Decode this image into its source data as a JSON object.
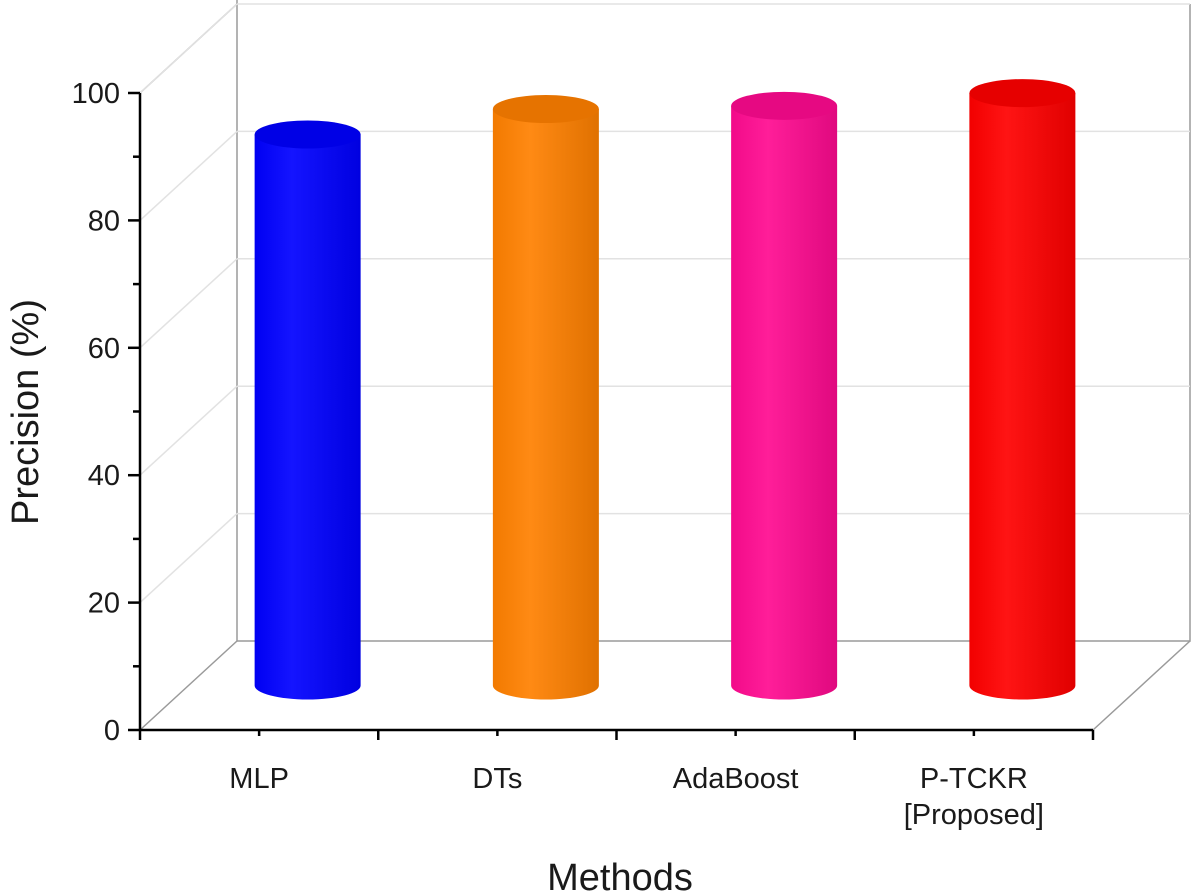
{
  "chart_data": {
    "type": "bar",
    "style": "3d-cylinder",
    "categories": [
      [
        "MLP"
      ],
      [
        "DTs"
      ],
      [
        "AdaBoost"
      ],
      [
        "P-TCKR",
        "[Proposed]"
      ]
    ],
    "series": [
      {
        "values": [
          86.5,
          90.5,
          91,
          93
        ],
        "colors": [
          "#0000ff",
          "#ff8000",
          "#ff0a90",
          "#ff0000"
        ]
      }
    ],
    "xlabel": "Methods",
    "ylabel": "Precision (%)",
    "ylim": [
      0,
      100
    ],
    "yticks": [
      "0",
      "20",
      "40",
      "60",
      "80",
      "100"
    ],
    "grid": true,
    "legend": "none"
  }
}
